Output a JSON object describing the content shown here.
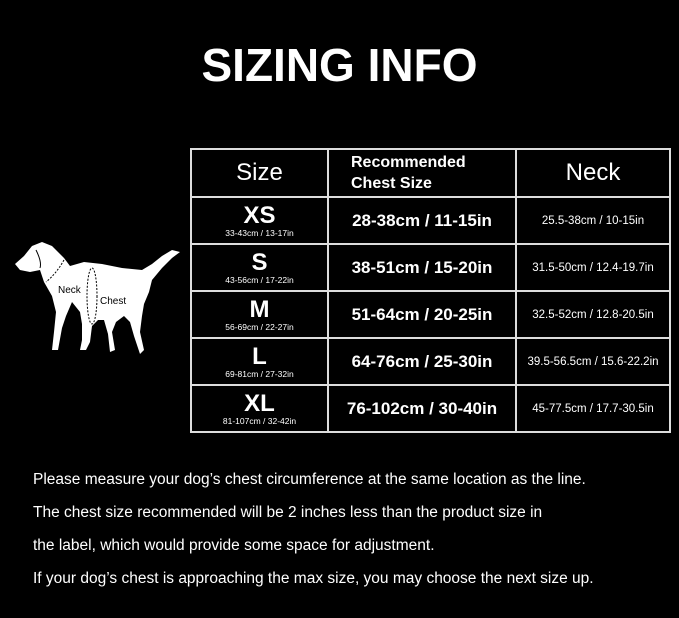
{
  "title": "SIZING INFO",
  "table": {
    "headers": {
      "size": "Size",
      "chest_line1": "Recommended",
      "chest_line2": "Chest Size",
      "neck": "Neck"
    },
    "rows": [
      {
        "size": "XS",
        "size_range": "33-43cm / 13-17in",
        "chest": "28-38cm / 11-15in",
        "neck": "25.5-38cm / 10-15in"
      },
      {
        "size": "S",
        "size_range": "43-56cm / 17-22in",
        "chest": "38-51cm / 15-20in",
        "neck": "31.5-50cm / 12.4-19.7in"
      },
      {
        "size": "M",
        "size_range": "56-69cm / 22-27in",
        "chest": "51-64cm / 20-25in",
        "neck": "32.5-52cm / 12.8-20.5in"
      },
      {
        "size": "L",
        "size_range": "69-81cm / 27-32in",
        "chest": "64-76cm / 25-30in",
        "neck": "39.5-56.5cm / 15.6-22.2in"
      },
      {
        "size": "XL",
        "size_range": "81-107cm / 32-42in",
        "chest": "76-102cm / 30-40in",
        "neck": "45-77.5cm / 17.7-30.5in"
      }
    ]
  },
  "dog": {
    "neck_label": "Neck",
    "chest_label": "Chest"
  },
  "notes": [
    "Please measure your dog’s chest circumference at the same location as the line.",
    "The chest size recommended will be 2 inches less than the product size in",
    "the label, which would provide some space for adjustment.",
    "If your dog’s chest is approaching the max size, you may choose the next size up."
  ]
}
